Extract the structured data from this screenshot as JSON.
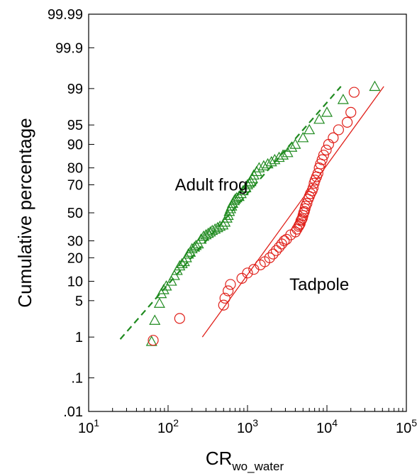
{
  "chart_data": {
    "type": "scatter",
    "title": "",
    "xlabel": "CR",
    "xlabel_sub": "wo_water",
    "ylabel": "Cumulative percentage",
    "x_scale": "log",
    "xlim": [
      10,
      100000
    ],
    "x_ticks": [
      {
        "value": 10,
        "base": "10",
        "exp": "1"
      },
      {
        "value": 100,
        "base": "10",
        "exp": "2"
      },
      {
        "value": 1000,
        "base": "10",
        "exp": "3"
      },
      {
        "value": 10000,
        "base": "10",
        "exp": "4"
      },
      {
        "value": 100000,
        "base": "10",
        "exp": "5"
      }
    ],
    "y_scale": "probability",
    "ylim": [
      0.01,
      99.99
    ],
    "y_ticks": [
      {
        "value": 0.01,
        "label": ".01"
      },
      {
        "value": 0.1,
        "label": ".1"
      },
      {
        "value": 1,
        "label": "1"
      },
      {
        "value": 5,
        "label": "5"
      },
      {
        "value": 10,
        "label": "10"
      },
      {
        "value": 20,
        "label": "20"
      },
      {
        "value": 30,
        "label": "30"
      },
      {
        "value": 50,
        "label": "50"
      },
      {
        "value": 70,
        "label": "70"
      },
      {
        "value": 80,
        "label": "80"
      },
      {
        "value": 90,
        "label": "90"
      },
      {
        "value": 95,
        "label": "95"
      },
      {
        "value": 99,
        "label": "99"
      },
      {
        "value": 99.9,
        "label": "99.9"
      },
      {
        "value": 99.99,
        "label": "99.99"
      }
    ],
    "grid": false,
    "series": [
      {
        "name": "Adult frog",
        "marker": "triangle",
        "color": "#1f8a1f",
        "fit_line": {
          "style": "dashed",
          "points": [
            [
              25,
              0.9
            ],
            [
              15000,
              99.1
            ]
          ]
        },
        "points": [
          [
            62,
            0.8
          ],
          [
            68,
            2.2
          ],
          [
            78,
            4.5
          ],
          [
            82,
            6.5
          ],
          [
            88,
            7.5
          ],
          [
            95,
            8.5
          ],
          [
            110,
            10
          ],
          [
            120,
            12
          ],
          [
            130,
            14
          ],
          [
            140,
            16
          ],
          [
            150,
            17
          ],
          [
            160,
            18
          ],
          [
            170,
            20
          ],
          [
            180,
            22
          ],
          [
            190,
            23
          ],
          [
            200,
            25
          ],
          [
            215,
            26
          ],
          [
            225,
            27
          ],
          [
            240,
            28
          ],
          [
            260,
            31
          ],
          [
            280,
            33
          ],
          [
            300,
            34
          ],
          [
            320,
            35
          ],
          [
            340,
            36
          ],
          [
            360,
            37
          ],
          [
            390,
            38
          ],
          [
            420,
            39
          ],
          [
            450,
            40
          ],
          [
            490,
            41
          ],
          [
            520,
            43
          ],
          [
            550,
            46
          ],
          [
            570,
            48
          ],
          [
            590,
            51
          ],
          [
            610,
            53
          ],
          [
            630,
            55
          ],
          [
            650,
            57
          ],
          [
            680,
            59
          ],
          [
            700,
            60
          ],
          [
            730,
            61
          ],
          [
            780,
            62
          ],
          [
            830,
            64
          ],
          [
            880,
            66
          ],
          [
            950,
            68
          ],
          [
            1000,
            70
          ],
          [
            1050,
            71
          ],
          [
            1100,
            72
          ],
          [
            1150,
            74
          ],
          [
            1200,
            76
          ],
          [
            1300,
            78
          ],
          [
            1400,
            80
          ],
          [
            1600,
            81
          ],
          [
            1800,
            82
          ],
          [
            2000,
            83
          ],
          [
            2200,
            84
          ],
          [
            2500,
            85
          ],
          [
            2800,
            86
          ],
          [
            3200,
            87
          ],
          [
            3600,
            89
          ],
          [
            4000,
            90
          ],
          [
            5000,
            92
          ],
          [
            6000,
            94
          ],
          [
            8000,
            96
          ],
          [
            10000,
            97
          ],
          [
            16000,
            98.3
          ],
          [
            40000,
            99.1
          ]
        ]
      },
      {
        "name": "Tadpole",
        "marker": "circle",
        "color": "#e0201a",
        "fit_line": {
          "style": "solid",
          "points": [
            [
              270,
              1.0
            ],
            [
              52000,
              99.1
            ]
          ]
        },
        "points": [
          [
            65,
            0.85
          ],
          [
            140,
            2.4
          ],
          [
            500,
            4.2
          ],
          [
            520,
            5.5
          ],
          [
            570,
            7.2
          ],
          [
            610,
            9.0
          ],
          [
            850,
            11
          ],
          [
            1000,
            13
          ],
          [
            1200,
            14.5
          ],
          [
            1450,
            16.5
          ],
          [
            1650,
            18
          ],
          [
            1900,
            20
          ],
          [
            2100,
            22
          ],
          [
            2300,
            24
          ],
          [
            2500,
            26
          ],
          [
            2700,
            28
          ],
          [
            2900,
            30
          ],
          [
            3100,
            31
          ],
          [
            3500,
            34
          ],
          [
            4000,
            36
          ],
          [
            4200,
            38
          ],
          [
            4400,
            40
          ],
          [
            4500,
            41
          ],
          [
            4600,
            42
          ],
          [
            4700,
            44
          ],
          [
            4800,
            45
          ],
          [
            4900,
            46
          ],
          [
            5000,
            48
          ],
          [
            5100,
            50
          ],
          [
            5200,
            51
          ],
          [
            5300,
            53
          ],
          [
            5400,
            55
          ],
          [
            5600,
            57
          ],
          [
            5800,
            60
          ],
          [
            6000,
            62
          ],
          [
            6200,
            64
          ],
          [
            6500,
            66
          ],
          [
            6700,
            68
          ],
          [
            6900,
            71
          ],
          [
            7100,
            73
          ],
          [
            7400,
            75
          ],
          [
            7700,
            77
          ],
          [
            8000,
            80
          ],
          [
            8300,
            82
          ],
          [
            8700,
            84
          ],
          [
            9100,
            86
          ],
          [
            9800,
            88
          ],
          [
            10500,
            90
          ],
          [
            12000,
            92
          ],
          [
            14000,
            94
          ],
          [
            18000,
            95.5
          ],
          [
            20000,
            97
          ],
          [
            22000,
            98.8
          ]
        ]
      }
    ],
    "annotations": [
      {
        "text": "Adult frog",
        "x": 350,
        "y": 70
      },
      {
        "text": "Tadpole",
        "x": 8000,
        "y": 9
      }
    ]
  }
}
